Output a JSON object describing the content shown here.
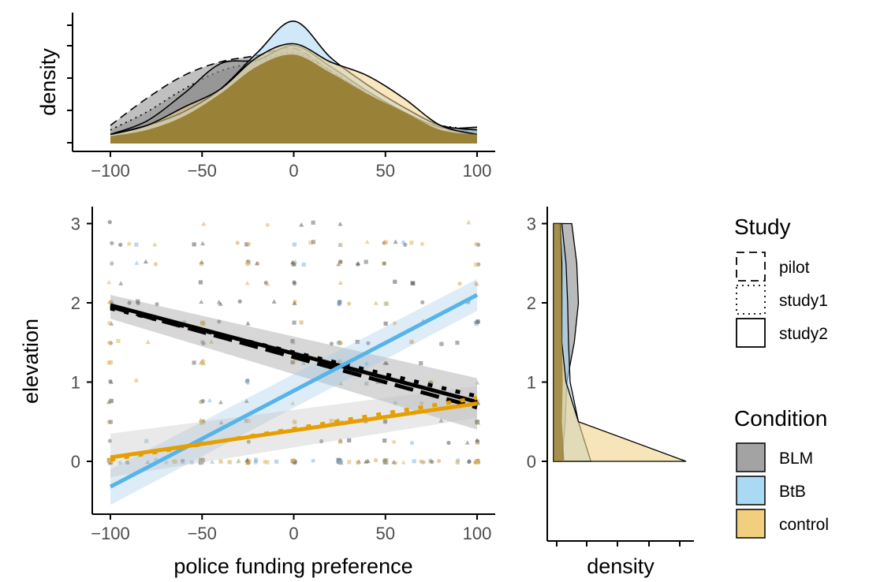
{
  "chart_data": [
    {
      "panel": "top-marginal",
      "type": "area",
      "xlabel": "",
      "ylabel": "density",
      "xlim": [
        -100,
        100
      ],
      "x_ticks": [
        -100,
        -50,
        0,
        50,
        100
      ],
      "x_tick_labels": [
        "−100",
        "−50",
        "0",
        "50",
        "100"
      ],
      "y_tick_labels": [],
      "grid": false,
      "description_series": [
        {
          "study": "pilot",
          "condition": "BLM",
          "x": [
            -100,
            -80,
            -60,
            -40,
            -20,
            0,
            20,
            40,
            60,
            80,
            100
          ],
          "density": [
            0.002,
            0.005,
            0.0075,
            0.009,
            0.0097,
            0.0105,
            0.008,
            0.0055,
            0.003,
            0.0015,
            0.0015
          ]
        },
        {
          "study": "study1",
          "condition": "BLM",
          "x": [
            -100,
            -80,
            -60,
            -40,
            -20,
            0,
            20,
            40,
            60,
            80,
            100
          ],
          "density": [
            0.0015,
            0.0035,
            0.006,
            0.008,
            0.009,
            0.01,
            0.008,
            0.0055,
            0.003,
            0.002,
            0.0015
          ]
        },
        {
          "study": "study2",
          "condition": "BLM",
          "x": [
            -100,
            -80,
            -60,
            -40,
            -20,
            0,
            20,
            40,
            60,
            80,
            100
          ],
          "density": [
            0.001,
            0.0025,
            0.0055,
            0.0088,
            0.0092,
            0.0108,
            0.0085,
            0.0058,
            0.0035,
            0.0018,
            0.0018
          ]
        },
        {
          "study": "study2",
          "condition": "BtB",
          "x": [
            -100,
            -80,
            -60,
            -40,
            -20,
            0,
            20,
            40,
            60,
            80,
            100
          ],
          "density": [
            0.001,
            0.002,
            0.0035,
            0.006,
            0.01,
            0.0135,
            0.0095,
            0.0065,
            0.004,
            0.002,
            0.0015
          ]
        },
        {
          "study": "study2",
          "condition": "control",
          "x": [
            -100,
            -80,
            -60,
            -40,
            -20,
            0,
            20,
            40,
            60,
            80,
            100
          ],
          "density": [
            0.001,
            0.002,
            0.004,
            0.006,
            0.0095,
            0.011,
            0.009,
            0.0075,
            0.005,
            0.002,
            0.001
          ]
        }
      ]
    },
    {
      "panel": "main",
      "type": "scatter",
      "xlabel": "police funding preference",
      "ylabel": "elevation",
      "xlim": [
        -100,
        100
      ],
      "ylim": [
        -0.6,
        3.1
      ],
      "x_ticks": [
        -100,
        -50,
        0,
        50,
        100
      ],
      "x_tick_labels": [
        "−100",
        "−50",
        "0",
        "50",
        "100"
      ],
      "y_ticks": [
        0,
        1,
        2,
        3
      ],
      "y_tick_labels": [
        "0",
        "1",
        "2",
        "3"
      ],
      "grid": false,
      "regression_lines": [
        {
          "condition": "BLM",
          "study": "pilot",
          "x": [
            -100,
            100
          ],
          "y": [
            1.95,
            0.68
          ]
        },
        {
          "condition": "BLM",
          "study": "study1",
          "x": [
            -100,
            100
          ],
          "y": [
            1.93,
            0.82
          ]
        },
        {
          "condition": "BLM",
          "study": "study2",
          "x": [
            -100,
            100
          ],
          "y": [
            1.97,
            0.75
          ]
        },
        {
          "condition": "BtB",
          "study": "study2",
          "x": [
            -100,
            100
          ],
          "y": [
            -0.32,
            2.1
          ]
        },
        {
          "condition": "control",
          "study": "study1",
          "x": [
            -100,
            100
          ],
          "y": [
            0.02,
            0.8
          ]
        },
        {
          "condition": "control",
          "study": "study2",
          "x": [
            -100,
            100
          ],
          "y": [
            0.05,
            0.73
          ]
        }
      ],
      "scatter_summary": "points at x = -100..100 (clustered at -100, -50, -25, 0, 25, 50, 100) with y between 0 and 3"
    },
    {
      "panel": "right-marginal",
      "type": "area",
      "xlabel": "density",
      "ylabel": "",
      "ylim": [
        -0.6,
        3.1
      ],
      "y_ticks": [
        0,
        1,
        2,
        3
      ],
      "y_tick_labels": [
        "0",
        "1",
        "2",
        "3"
      ],
      "x_tick_labels": [],
      "grid": false,
      "description_series": [
        {
          "condition": "BLM",
          "y": [
            0,
            0.5,
            1,
            1.5,
            2,
            2.5,
            3
          ],
          "density": [
            0.1,
            0.14,
            0.16,
            0.25,
            0.3,
            0.28,
            0.22
          ]
        },
        {
          "condition": "BtB",
          "y": [
            0,
            0.5,
            1,
            1.5,
            2,
            2.5,
            3
          ],
          "density": [
            0.45,
            0.3,
            0.2,
            0.18,
            0.17,
            0.15,
            0.1
          ]
        },
        {
          "condition": "control",
          "y": [
            0,
            0.5,
            1,
            1.5,
            2,
            2.5,
            3
          ],
          "density": [
            1.6,
            0.3,
            0.15,
            0.1,
            0.1,
            0.1,
            0.08
          ]
        }
      ]
    }
  ],
  "legend": {
    "study_title": "Study",
    "study_items": [
      {
        "label": "pilot",
        "linetype": "dashed"
      },
      {
        "label": "study1",
        "linetype": "dotted"
      },
      {
        "label": "study2",
        "linetype": "solid"
      }
    ],
    "condition_title": "Condition",
    "condition_items": [
      {
        "label": "BLM",
        "color": "#8c8c8c"
      },
      {
        "label": "BtB",
        "color": "#56b4e9"
      },
      {
        "label": "control",
        "color": "#e69f00"
      }
    ]
  },
  "colors": {
    "BLM_line": "#000000",
    "BtB_line": "#56b4e9",
    "control_line": "#e69f00",
    "BLM_fill": "#8c8c8c",
    "BtB_fill": "#a9d6f2",
    "control_fill": "#f2d48c",
    "overlap_fill": "#8f7425"
  }
}
